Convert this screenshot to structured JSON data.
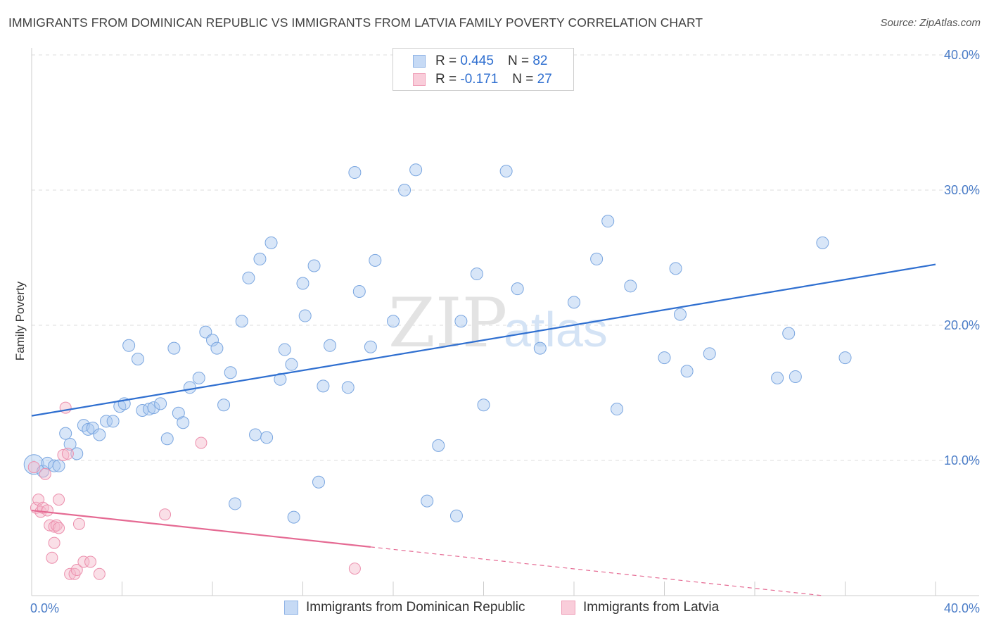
{
  "title": "IMMIGRANTS FROM DOMINICAN REPUBLIC VS IMMIGRANTS FROM LATVIA FAMILY POVERTY CORRELATION CHART",
  "source": "Source: ZipAtlas.com",
  "watermark": {
    "zip": "ZIP",
    "atlas": "atlas"
  },
  "colors": {
    "blue": "#a9c7ef",
    "blue_line": "#2f6fd0",
    "pink": "#f5b7c9",
    "pink_line": "#e56a93"
  },
  "legend": {
    "r_label": "R =",
    "n_label": "N =",
    "series1": {
      "r": "0.445",
      "n": "82"
    },
    "series2": {
      "r": "-0.171",
      "n": "27"
    }
  },
  "chart_data": {
    "type": "scatter",
    "xlabel": "",
    "ylabel": "Family Poverty",
    "xlim": [
      0,
      40
    ],
    "ylim": [
      0,
      40
    ],
    "x_tick_labels": [
      "0.0%",
      "40.0%"
    ],
    "y_ticks": [
      10,
      20,
      30,
      40
    ],
    "y_tick_labels": [
      "10.0%",
      "20.0%",
      "30.0%",
      "40.0%"
    ],
    "grid": true,
    "legend_position": "top-center",
    "series": [
      {
        "name": "Immigrants from Dominican Republic",
        "color": "#a9c7ef",
        "trend": {
          "x": [
            0,
            40
          ],
          "y": [
            13.3,
            24.5
          ]
        },
        "points": [
          [
            0.1,
            9.7
          ],
          [
            0.5,
            9.2
          ],
          [
            0.7,
            9.8
          ],
          [
            1.0,
            9.6
          ],
          [
            1.2,
            9.6
          ],
          [
            1.5,
            12.0
          ],
          [
            1.7,
            11.2
          ],
          [
            2.0,
            10.5
          ],
          [
            2.3,
            12.6
          ],
          [
            2.5,
            12.3
          ],
          [
            2.7,
            12.4
          ],
          [
            3.0,
            11.9
          ],
          [
            3.3,
            12.9
          ],
          [
            3.6,
            12.9
          ],
          [
            3.9,
            14.0
          ],
          [
            4.1,
            14.2
          ],
          [
            4.3,
            18.5
          ],
          [
            4.7,
            17.5
          ],
          [
            4.9,
            13.7
          ],
          [
            5.2,
            13.8
          ],
          [
            5.4,
            13.9
          ],
          [
            5.7,
            14.2
          ],
          [
            6.0,
            11.6
          ],
          [
            6.3,
            18.3
          ],
          [
            6.5,
            13.5
          ],
          [
            6.7,
            12.8
          ],
          [
            7.0,
            15.4
          ],
          [
            7.4,
            16.1
          ],
          [
            7.7,
            19.5
          ],
          [
            8.0,
            18.9
          ],
          [
            8.2,
            18.3
          ],
          [
            8.5,
            14.1
          ],
          [
            8.8,
            16.5
          ],
          [
            9.0,
            6.8
          ],
          [
            9.3,
            20.3
          ],
          [
            9.6,
            23.5
          ],
          [
            9.9,
            11.9
          ],
          [
            10.1,
            24.9
          ],
          [
            10.4,
            11.7
          ],
          [
            10.6,
            26.1
          ],
          [
            11.0,
            16.0
          ],
          [
            11.2,
            18.2
          ],
          [
            11.5,
            17.1
          ],
          [
            11.6,
            5.8
          ],
          [
            12.0,
            23.1
          ],
          [
            12.1,
            20.7
          ],
          [
            12.5,
            24.4
          ],
          [
            12.7,
            8.4
          ],
          [
            12.9,
            15.5
          ],
          [
            13.2,
            18.5
          ],
          [
            14.0,
            15.4
          ],
          [
            14.3,
            31.3
          ],
          [
            14.5,
            22.5
          ],
          [
            15.0,
            18.4
          ],
          [
            15.2,
            24.8
          ],
          [
            16.0,
            20.3
          ],
          [
            16.5,
            30.0
          ],
          [
            17.0,
            31.5
          ],
          [
            17.5,
            7.0
          ],
          [
            18.0,
            11.1
          ],
          [
            18.8,
            5.9
          ],
          [
            19.0,
            20.3
          ],
          [
            19.7,
            23.8
          ],
          [
            20.0,
            14.1
          ],
          [
            21.0,
            31.4
          ],
          [
            21.5,
            22.7
          ],
          [
            22.5,
            18.3
          ],
          [
            24.0,
            21.7
          ],
          [
            25.0,
            24.9
          ],
          [
            25.5,
            27.7
          ],
          [
            25.9,
            13.8
          ],
          [
            26.5,
            22.9
          ],
          [
            28.0,
            17.6
          ],
          [
            28.5,
            24.2
          ],
          [
            28.7,
            20.8
          ],
          [
            29.0,
            16.6
          ],
          [
            30.0,
            17.9
          ],
          [
            33.0,
            16.1
          ],
          [
            33.5,
            19.4
          ],
          [
            33.8,
            16.2
          ],
          [
            35.0,
            26.1
          ],
          [
            36.0,
            17.6
          ]
        ]
      },
      {
        "name": "Immigrants from Latvia",
        "color": "#f5b7c9",
        "trend": {
          "x": [
            0,
            15
          ],
          "y": [
            6.3,
            3.6
          ],
          "dash_x": [
            15,
            40
          ],
          "dash_y": [
            3.6,
            -0.9
          ]
        },
        "points": [
          [
            0.1,
            9.5
          ],
          [
            0.2,
            6.5
          ],
          [
            0.3,
            7.1
          ],
          [
            0.4,
            6.2
          ],
          [
            0.5,
            6.5
          ],
          [
            0.6,
            9.0
          ],
          [
            0.7,
            6.3
          ],
          [
            0.8,
            5.2
          ],
          [
            0.9,
            2.8
          ],
          [
            1.0,
            3.9
          ],
          [
            1.0,
            5.1
          ],
          [
            1.1,
            5.2
          ],
          [
            1.2,
            7.1
          ],
          [
            1.2,
            5.0
          ],
          [
            1.4,
            10.4
          ],
          [
            1.5,
            13.9
          ],
          [
            1.6,
            10.5
          ],
          [
            1.7,
            1.6
          ],
          [
            1.9,
            1.6
          ],
          [
            2.0,
            1.9
          ],
          [
            2.1,
            5.3
          ],
          [
            2.3,
            2.5
          ],
          [
            2.6,
            2.5
          ],
          [
            3.0,
            1.6
          ],
          [
            5.9,
            6.0
          ],
          [
            7.5,
            11.3
          ],
          [
            14.3,
            2.0
          ]
        ]
      }
    ]
  },
  "bottom_legend": {
    "series1_label": "Immigrants from Dominican Republic",
    "series2_label": "Immigrants from Latvia"
  }
}
